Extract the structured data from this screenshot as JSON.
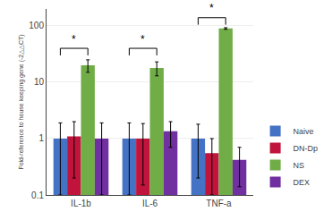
{
  "chart_data": {
    "type": "bar",
    "categories": [
      "IL-1b",
      "IL-6",
      "TNF-a"
    ],
    "series": [
      {
        "name": "Naive",
        "color": "#4472C4",
        "values": [
          1.0,
          1.0,
          1.0
        ],
        "errors": [
          0.9,
          0.9,
          0.8
        ]
      },
      {
        "name": "DN-Dp",
        "color": "#C0143C",
        "values": [
          1.1,
          1.0,
          0.55
        ],
        "errors": [
          0.9,
          0.85,
          0.45
        ]
      },
      {
        "name": "NS",
        "color": "#70AD47",
        "values": [
          20.0,
          18.0,
          90.0
        ],
        "errors": [
          5.0,
          5.0,
          3.0
        ]
      },
      {
        "name": "DEX",
        "color": "#7030A0",
        "values": [
          1.0,
          1.35,
          0.42
        ],
        "errors": [
          0.9,
          0.65,
          0.28
        ]
      }
    ],
    "ylabel": "Fold-reference to house keeping gene (-2△△CT)",
    "log": "y",
    "ylim": [
      0.1,
      200
    ],
    "yticks": [
      0.1,
      1,
      10,
      100
    ],
    "grid": true,
    "legend": "lower right",
    "annotations": [
      {
        "category": "IL-1b",
        "from": "Naive",
        "to": "NS",
        "y": 40,
        "text": "*"
      },
      {
        "category": "IL-6",
        "from": "Naive",
        "to": "NS",
        "y": 40,
        "text": "*"
      },
      {
        "category": "TNF-a",
        "from": "Naive",
        "to": "NS",
        "y": 140,
        "text": "*"
      }
    ]
  }
}
